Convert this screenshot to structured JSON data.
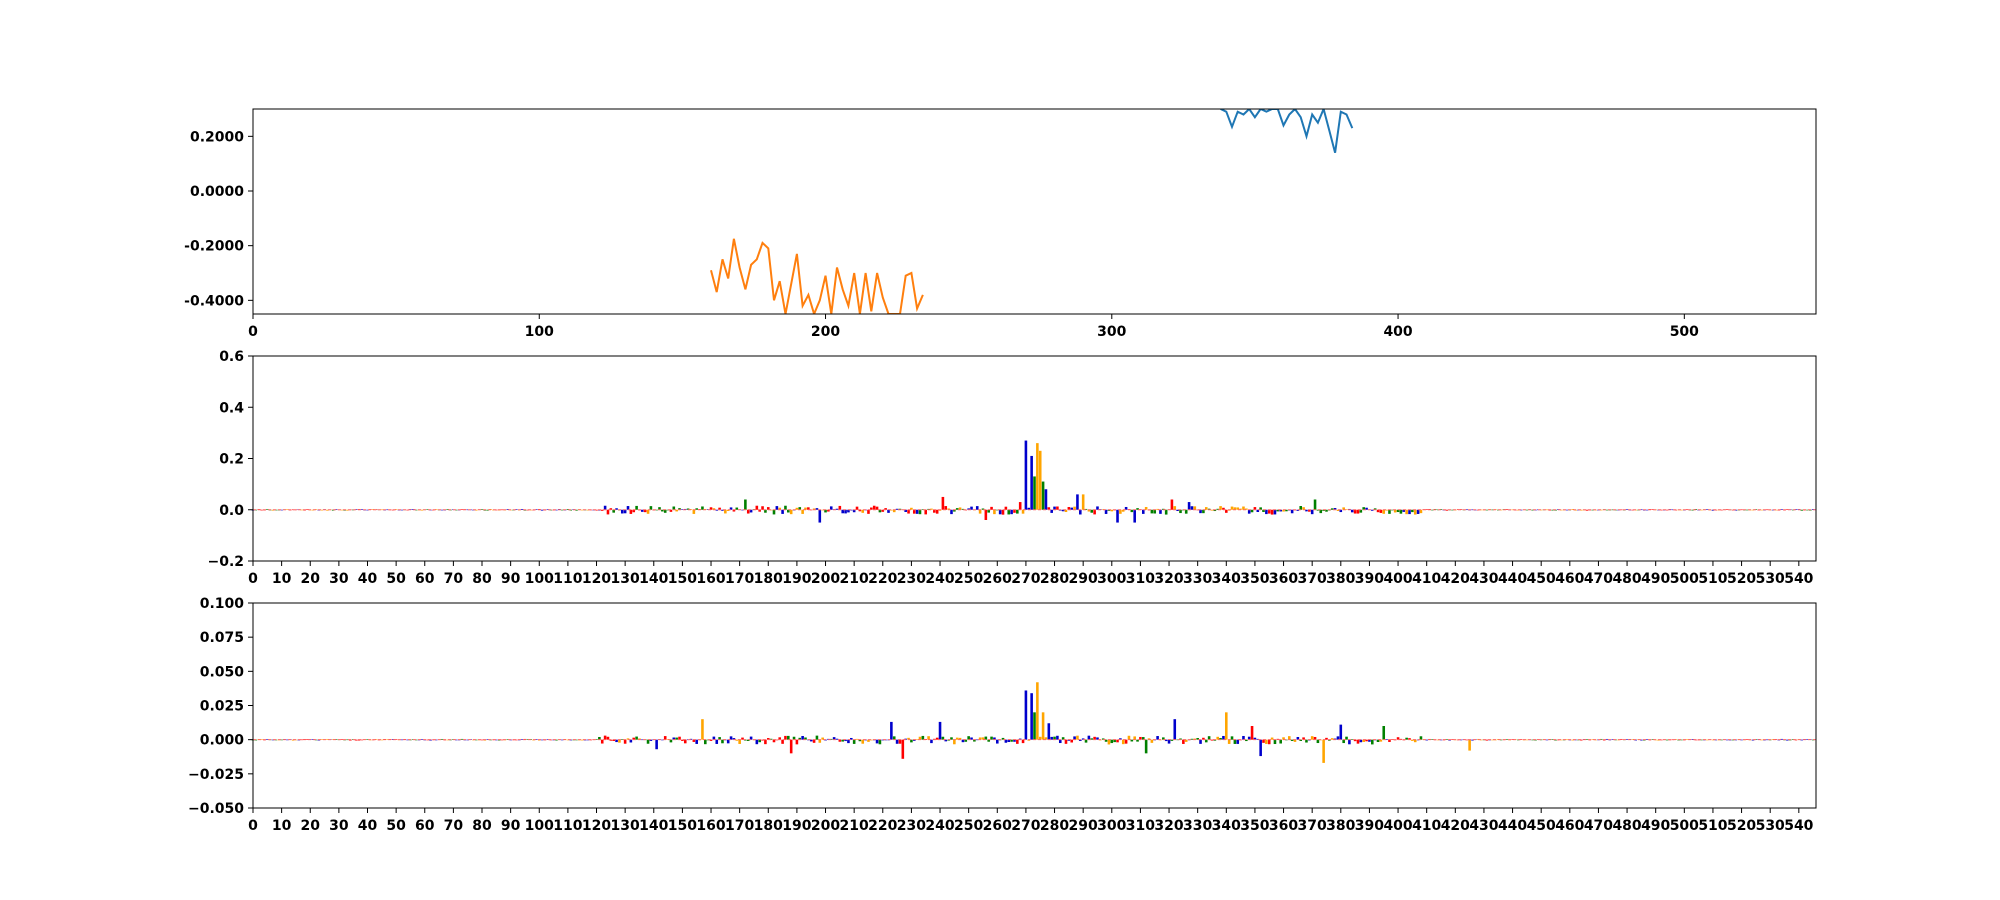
{
  "chart_data": [
    {
      "type": "line",
      "title": "",
      "xlabel": "",
      "ylabel": "",
      "xlim": [
        0,
        546
      ],
      "ylim": [
        -0.45,
        0.3
      ],
      "xticks": [
        0,
        100,
        200,
        300,
        400,
        500
      ],
      "xtick_labels": [
        "0",
        "100",
        "200",
        "300",
        "400",
        "500"
      ],
      "yticks": [
        -0.4,
        -0.2,
        0.0,
        0.2
      ],
      "ytick_labels": [
        "-0.4000",
        "-0.2000",
        "0.0000",
        "0.2000"
      ],
      "grid": false,
      "series": [
        {
          "color": "#1f77b4",
          "x": [
            338,
            340,
            342,
            344,
            346,
            348,
            350,
            352,
            354,
            356,
            358,
            360,
            362,
            364,
            366,
            368,
            370,
            372,
            374,
            376,
            378,
            380,
            382,
            384
          ],
          "y": [
            0.3,
            0.29,
            0.235,
            0.29,
            0.28,
            0.3,
            0.27,
            0.3,
            0.29,
            0.3,
            0.3,
            0.24,
            0.28,
            0.3,
            0.27,
            0.2,
            0.28,
            0.25,
            0.3,
            0.22,
            0.14,
            0.29,
            0.28,
            0.23
          ]
        },
        {
          "color": "#ff7f0e",
          "x": [
            160,
            162,
            164,
            166,
            168,
            170,
            172,
            174,
            176,
            178,
            180,
            182,
            184,
            186,
            188,
            190,
            192,
            194,
            196,
            198,
            200,
            202,
            204,
            206,
            208,
            210,
            212,
            214,
            216,
            218,
            220,
            222,
            224,
            226,
            228,
            230,
            232,
            234
          ],
          "y": [
            -0.29,
            -0.37,
            -0.25,
            -0.32,
            -0.175,
            -0.28,
            -0.36,
            -0.27,
            -0.25,
            -0.19,
            -0.21,
            -0.4,
            -0.33,
            -0.45,
            -0.34,
            -0.23,
            -0.42,
            -0.38,
            -0.45,
            -0.4,
            -0.31,
            -0.45,
            -0.28,
            -0.36,
            -0.42,
            -0.3,
            -0.45,
            -0.3,
            -0.44,
            -0.3,
            -0.39,
            -0.45,
            -0.45,
            -0.45,
            -0.31,
            -0.3,
            -0.43,
            -0.38
          ]
        }
      ]
    },
    {
      "type": "bar",
      "title": "",
      "xlabel": "",
      "ylabel": "",
      "xlim": [
        0,
        546
      ],
      "ylim": [
        -0.2,
        0.6
      ],
      "yticks": [
        -0.2,
        0.0,
        0.2,
        0.4,
        0.6
      ],
      "ytick_labels": [
        "−0.2",
        "0.0",
        "0.2",
        "0.4",
        "0.6"
      ],
      "xtick_step": 10,
      "xtick_labels": [
        "0",
        "10",
        "20",
        "30",
        "40",
        "50",
        "60",
        "70",
        "80",
        "90",
        "100",
        "110",
        "120",
        "130",
        "140",
        "150",
        "160",
        "170",
        "180",
        "190",
        "200",
        "210",
        "220",
        "230",
        "240",
        "250",
        "260",
        "270",
        "280",
        "290",
        "300",
        "310",
        "320",
        "330",
        "340",
        "350",
        "360",
        "370",
        "380",
        "390",
        "400",
        "410",
        "420",
        "430",
        "440",
        "450",
        "460",
        "470",
        "480",
        "490",
        "500",
        "510",
        "520",
        "530",
        "540"
      ],
      "grid": false,
      "peaks": [
        {
          "x": 270,
          "value": 0.27,
          "color": "#0000cc"
        },
        {
          "x": 272,
          "value": 0.21,
          "color": "#0000cc"
        },
        {
          "x": 273,
          "value": 0.13,
          "color": "#008000"
        },
        {
          "x": 274,
          "value": 0.26,
          "color": "#ffa500"
        },
        {
          "x": 275,
          "value": 0.23,
          "color": "#ffa500"
        },
        {
          "x": 276,
          "value": 0.11,
          "color": "#008000"
        },
        {
          "x": 277,
          "value": 0.08,
          "color": "#0000cc"
        },
        {
          "x": 268,
          "value": 0.03,
          "color": "#ff0000"
        },
        {
          "x": 241,
          "value": 0.05,
          "color": "#ff0000"
        },
        {
          "x": 288,
          "value": 0.06,
          "color": "#0000cc"
        },
        {
          "x": 290,
          "value": 0.06,
          "color": "#ffa500"
        },
        {
          "x": 172,
          "value": 0.04,
          "color": "#008000"
        },
        {
          "x": 321,
          "value": 0.04,
          "color": "#ff0000"
        },
        {
          "x": 327,
          "value": 0.03,
          "color": "#0000cc"
        },
        {
          "x": 371,
          "value": 0.04,
          "color": "#008000"
        },
        {
          "x": 302,
          "value": -0.05,
          "color": "#0000cc"
        },
        {
          "x": 308,
          "value": -0.05,
          "color": "#0000cc"
        },
        {
          "x": 198,
          "value": -0.05,
          "color": "#0000cc"
        },
        {
          "x": 256,
          "value": -0.04,
          "color": "#ff0000"
        }
      ]
    },
    {
      "type": "bar",
      "title": "",
      "xlabel": "",
      "ylabel": "",
      "xlim": [
        0,
        546
      ],
      "ylim": [
        -0.05,
        0.1
      ],
      "yticks": [
        -0.05,
        -0.025,
        0.0,
        0.025,
        0.05,
        0.075,
        0.1
      ],
      "ytick_labels": [
        "−0.050",
        "−0.025",
        "0.000",
        "0.025",
        "0.050",
        "0.075",
        "0.100"
      ],
      "xtick_step": 10,
      "xtick_labels": [
        "0",
        "10",
        "20",
        "30",
        "40",
        "50",
        "60",
        "70",
        "80",
        "90",
        "100",
        "110",
        "120",
        "130",
        "140",
        "150",
        "160",
        "170",
        "180",
        "190",
        "200",
        "210",
        "220",
        "230",
        "240",
        "250",
        "260",
        "270",
        "280",
        "290",
        "300",
        "310",
        "320",
        "330",
        "340",
        "350",
        "360",
        "370",
        "380",
        "390",
        "400",
        "410",
        "420",
        "430",
        "440",
        "450",
        "460",
        "470",
        "480",
        "490",
        "500",
        "510",
        "520",
        "530",
        "540"
      ],
      "grid": false,
      "peaks": [
        {
          "x": 270,
          "value": 0.036,
          "color": "#0000cc"
        },
        {
          "x": 272,
          "value": 0.034,
          "color": "#0000cc"
        },
        {
          "x": 273,
          "value": 0.02,
          "color": "#008000"
        },
        {
          "x": 274,
          "value": 0.042,
          "color": "#ffa500"
        },
        {
          "x": 276,
          "value": 0.02,
          "color": "#ffa500"
        },
        {
          "x": 278,
          "value": 0.012,
          "color": "#0000cc"
        },
        {
          "x": 157,
          "value": 0.015,
          "color": "#ffa500"
        },
        {
          "x": 188,
          "value": 0.01,
          "color": "#008000"
        },
        {
          "x": 223,
          "value": 0.013,
          "color": "#0000cc"
        },
        {
          "x": 240,
          "value": 0.013,
          "color": "#0000cc"
        },
        {
          "x": 322,
          "value": 0.015,
          "color": "#0000cc"
        },
        {
          "x": 340,
          "value": 0.02,
          "color": "#ffa500"
        },
        {
          "x": 349,
          "value": 0.01,
          "color": "#ff0000"
        },
        {
          "x": 380,
          "value": 0.011,
          "color": "#0000cc"
        },
        {
          "x": 395,
          "value": 0.01,
          "color": "#008000"
        },
        {
          "x": 188,
          "value": -0.01,
          "color": "#ff0000"
        },
        {
          "x": 227,
          "value": -0.014,
          "color": "#ff0000"
        },
        {
          "x": 374,
          "value": -0.017,
          "color": "#ffa500"
        },
        {
          "x": 352,
          "value": -0.012,
          "color": "#0000cc"
        },
        {
          "x": 312,
          "value": -0.01,
          "color": "#008000"
        },
        {
          "x": 141,
          "value": -0.007,
          "color": "#0000cc"
        },
        {
          "x": 425,
          "value": -0.008,
          "color": "#ffa500"
        }
      ]
    }
  ]
}
